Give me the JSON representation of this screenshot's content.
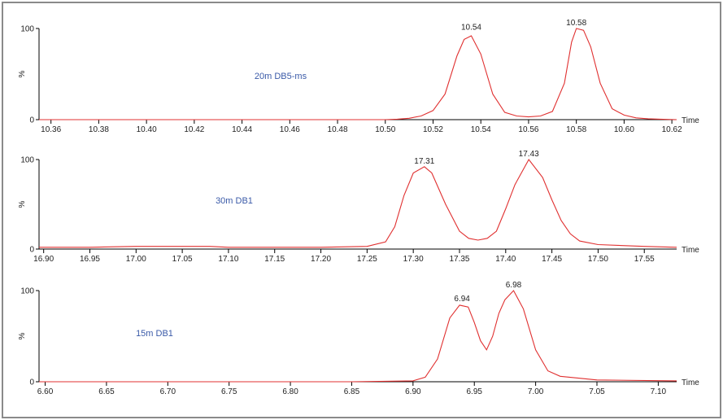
{
  "chart_data": [
    {
      "type": "line",
      "annotation": "20m DB5-ms",
      "ylabel": "%",
      "xlabel": "Time",
      "xlim": [
        10.355,
        10.622
      ],
      "ylim": [
        0,
        100
      ],
      "y_ticks": [
        0,
        100
      ],
      "x_ticks": [
        "10.36",
        "10.38",
        "10.40",
        "10.42",
        "10.44",
        "10.46",
        "10.48",
        "10.50",
        "10.52",
        "10.54",
        "10.56",
        "10.58",
        "10.60",
        "10.62"
      ],
      "peak_labels": [
        {
          "x": 10.536,
          "y": 95,
          "text": "10.54"
        },
        {
          "x": 10.58,
          "y": 100,
          "text": "10.58"
        }
      ],
      "line_color": "#e03030",
      "series": [
        {
          "x": [
            10.355,
            10.5,
            10.505,
            10.51,
            10.515,
            10.52,
            10.525,
            10.53,
            10.533,
            10.536,
            10.54,
            10.545,
            10.55,
            10.555,
            10.56,
            10.565,
            10.57,
            10.575,
            10.578,
            10.58,
            10.583,
            10.586,
            10.59,
            10.595,
            10.6,
            10.605,
            10.61,
            10.615,
            10.622
          ],
          "y": [
            0,
            0,
            0.5,
            1.5,
            4,
            10,
            28,
            70,
            88,
            92,
            72,
            28,
            8,
            4,
            3,
            4,
            9,
            40,
            85,
            100,
            98,
            80,
            40,
            12,
            5,
            2,
            1,
            0.5,
            0
          ]
        }
      ]
    },
    {
      "type": "line",
      "annotation": "30m DB1",
      "ylabel": "%",
      "xlabel": "Time",
      "xlim": [
        16.895,
        17.585
      ],
      "ylim": [
        0,
        100
      ],
      "y_ticks": [
        0,
        100
      ],
      "x_ticks": [
        "16.90",
        "16.95",
        "17.00",
        "17.05",
        "17.10",
        "17.15",
        "17.20",
        "17.25",
        "17.30",
        "17.35",
        "17.40",
        "17.45",
        "17.50",
        "17.55"
      ],
      "peak_labels": [
        {
          "x": 17.312,
          "y": 92,
          "text": "17.31"
        },
        {
          "x": 17.425,
          "y": 100,
          "text": "17.43"
        }
      ],
      "line_color": "#e03030",
      "series": [
        {
          "x": [
            16.895,
            16.95,
            17.0,
            17.05,
            17.08,
            17.1,
            17.15,
            17.2,
            17.25,
            17.27,
            17.28,
            17.29,
            17.3,
            17.312,
            17.32,
            17.335,
            17.35,
            17.36,
            17.37,
            17.38,
            17.39,
            17.4,
            17.41,
            17.425,
            17.44,
            17.45,
            17.46,
            17.47,
            17.48,
            17.5,
            17.55,
            17.585
          ],
          "y": [
            2,
            2,
            3,
            3,
            3,
            2,
            2,
            2,
            3,
            8,
            25,
            60,
            85,
            92,
            85,
            50,
            20,
            12,
            10,
            12,
            20,
            45,
            72,
            100,
            80,
            55,
            32,
            17,
            9,
            5,
            3,
            2
          ]
        }
      ]
    },
    {
      "type": "line",
      "annotation": "15m DB1",
      "ylabel": "%",
      "xlabel": "Time",
      "xlim": [
        6.595,
        7.115
      ],
      "ylim": [
        0,
        100
      ],
      "y_ticks": [
        0,
        100
      ],
      "x_ticks": [
        "6.60",
        "6.65",
        "6.70",
        "6.75",
        "6.80",
        "6.85",
        "6.90",
        "6.95",
        "7.00",
        "7.05",
        "7.10"
      ],
      "peak_labels": [
        {
          "x": 6.94,
          "y": 85,
          "text": "6.94"
        },
        {
          "x": 6.982,
          "y": 100,
          "text": "6.98"
        }
      ],
      "line_color": "#e03030",
      "series": [
        {
          "x": [
            6.595,
            6.85,
            6.9,
            6.91,
            6.92,
            6.93,
            6.938,
            6.945,
            6.95,
            6.955,
            6.96,
            6.965,
            6.97,
            6.975,
            6.982,
            6.99,
            7.0,
            7.01,
            7.02,
            7.05,
            7.115
          ],
          "y": [
            0,
            0,
            1,
            5,
            25,
            70,
            84,
            82,
            65,
            45,
            35,
            50,
            75,
            90,
            100,
            80,
            35,
            12,
            6,
            2,
            1
          ]
        }
      ]
    }
  ]
}
